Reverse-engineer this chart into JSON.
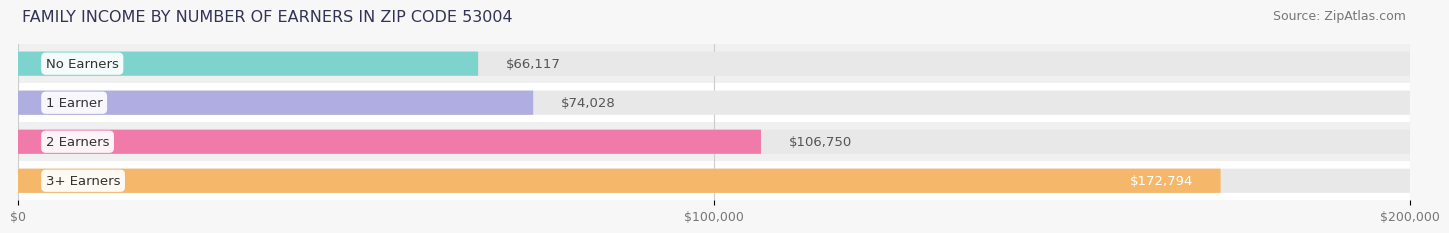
{
  "title": "FAMILY INCOME BY NUMBER OF EARNERS IN ZIP CODE 53004",
  "source": "Source: ZipAtlas.com",
  "categories": [
    "No Earners",
    "1 Earner",
    "2 Earners",
    "3+ Earners"
  ],
  "values": [
    66117,
    74028,
    106750,
    172794
  ],
  "labels": [
    "$66,117",
    "$74,028",
    "$106,750",
    "$172,794"
  ],
  "bar_colors": [
    "#7dd4cc",
    "#b0aee0",
    "#f07aaa",
    "#f5b86a"
  ],
  "label_inside": [
    false,
    false,
    false,
    true
  ],
  "label_color_inside": "#ffffff",
  "label_color_outside": "#555555",
  "xlim": [
    0,
    200000
  ],
  "xticks": [
    0,
    100000,
    200000
  ],
  "xticklabels": [
    "$0",
    "$100,000",
    "$200,000"
  ],
  "background_color": "#f7f7f7",
  "bar_bg_color": "#e8e8e8",
  "row_bg_colors": [
    "#ffffff",
    "#f0f0f0"
  ],
  "title_fontsize": 11.5,
  "source_fontsize": 9,
  "label_fontsize": 9.5,
  "category_fontsize": 9.5,
  "tick_fontsize": 9
}
